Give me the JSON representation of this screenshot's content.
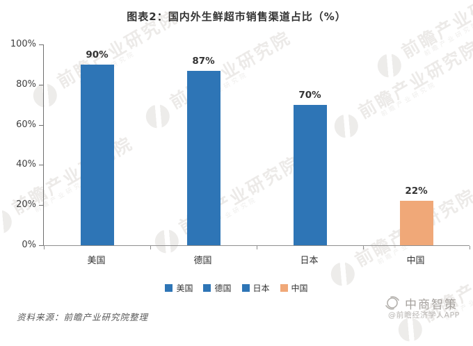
{
  "title": "图表2：国内外生鲜超市销售渠道占比（%）",
  "chart_data": {
    "type": "bar",
    "title": "图表2：国内外生鲜超市销售渠道占比（%）",
    "categories": [
      "美国",
      "德国",
      "日本",
      "中国"
    ],
    "values": [
      90,
      87,
      70,
      22
    ],
    "value_labels": [
      "90%",
      "87%",
      "70%",
      "22%"
    ],
    "unit": "%",
    "xlabel": "",
    "ylabel": "",
    "ylim": [
      0,
      100
    ],
    "yticks": [
      "0%",
      "20%",
      "40%",
      "60%",
      "80%",
      "100%"
    ],
    "grid": false,
    "legend_position": "bottom",
    "bar_colors": [
      "#2E75B6",
      "#2E75B6",
      "#2E75B6",
      "#F0A878"
    ],
    "legend": [
      {
        "label": "美国",
        "color": "#2E75B6"
      },
      {
        "label": "德国",
        "color": "#2E75B6"
      },
      {
        "label": "日本",
        "color": "#2E75B6"
      },
      {
        "label": "中国",
        "color": "#F0A878"
      }
    ]
  },
  "watermark": {
    "text": "前瞻产业研究院",
    "subtext": "前瞻产业研究院",
    "logo": "qianzhan-bird-logo"
  },
  "footer": {
    "source": "资料来源：前瞻产业研究院整理"
  },
  "branding": {
    "name": "中商智策",
    "handle": "@前瞻经济学人APP",
    "logo": "zhongshang-globe-logo"
  },
  "colors": {
    "bar_blue": "#2E75B6",
    "bar_orange": "#F0A878",
    "axis": "#6e6e6e",
    "title_text": "#333333"
  }
}
